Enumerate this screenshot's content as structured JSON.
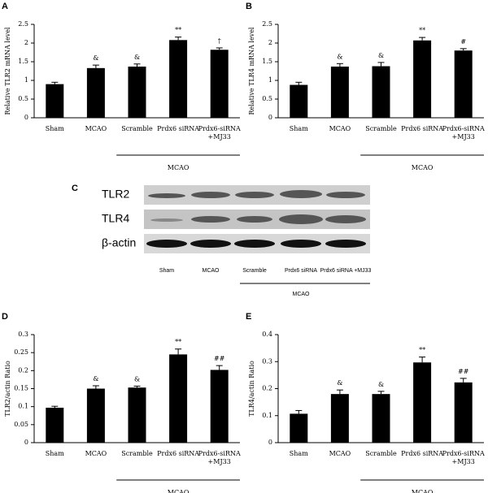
{
  "chart_data": [
    {
      "type": "bar",
      "panel": "A",
      "ylabel": "Relative TLR2 mRNA level",
      "categories": [
        "Sham",
        "MCAO",
        "Scramble",
        "Prdx6 siRNA",
        "Prdx6-siRNA\n+MJ33"
      ],
      "values": [
        0.9,
        1.33,
        1.37,
        2.08,
        1.82
      ],
      "errors": [
        0.05,
        0.08,
        0.07,
        0.08,
        0.05
      ],
      "annotations": [
        null,
        "&",
        "&",
        "**",
        "†"
      ],
      "group_label": "MCAO",
      "ylim": [
        0,
        2.5
      ],
      "yticks": [
        0,
        0.5,
        1,
        1.5,
        2,
        2.5
      ],
      "color": "#000000"
    },
    {
      "type": "bar",
      "panel": "B",
      "ylabel": "Relative TLR4 mRNA level",
      "categories": [
        "Sham",
        "MCAO",
        "Scramble",
        "Prdx6 siRNA",
        "Prdx6-siRNA\n+MJ33"
      ],
      "values": [
        0.88,
        1.37,
        1.38,
        2.07,
        1.8
      ],
      "errors": [
        0.07,
        0.08,
        0.1,
        0.08,
        0.05
      ],
      "annotations": [
        null,
        "&",
        "&",
        "**",
        "#"
      ],
      "group_label": "MCAO",
      "ylim": [
        0,
        2.5
      ],
      "yticks": [
        0,
        0.5,
        1,
        1.5,
        2,
        2.5
      ],
      "color": "#000000"
    },
    {
      "type": "bar",
      "panel": "D",
      "ylabel": "TLR2/actin Ratio",
      "categories": [
        "Sham",
        "MCAO",
        "Scramble",
        "Prdx6 siRNA",
        "Prdx6-siRNA\n+MJ33"
      ],
      "values": [
        0.097,
        0.15,
        0.153,
        0.245,
        0.202
      ],
      "errors": [
        0.004,
        0.008,
        0.004,
        0.015,
        0.012
      ],
      "annotations": [
        null,
        "&",
        "&",
        "**",
        "##"
      ],
      "group_label": "MCAO",
      "ylim": [
        0,
        0.3
      ],
      "yticks": [
        0,
        0.05,
        0.1,
        0.15,
        0.2,
        0.25,
        0.3
      ],
      "color": "#000000"
    },
    {
      "type": "bar",
      "panel": "E",
      "ylabel": "TLR4/actin Ratio",
      "categories": [
        "Sham",
        "MCAO",
        "Scramble",
        "Prdx6 siRNA",
        "Prdx6-siRNA\n+MJ33"
      ],
      "values": [
        0.107,
        0.18,
        0.18,
        0.297,
        0.223
      ],
      "errors": [
        0.012,
        0.015,
        0.01,
        0.02,
        0.015
      ],
      "annotations": [
        null,
        "&",
        "&",
        "**",
        "##"
      ],
      "group_label": "MCAO",
      "ylim": [
        0,
        0.4
      ],
      "yticks": [
        0,
        0.1,
        0.2,
        0.3,
        0.4
      ],
      "color": "#000000"
    }
  ],
  "blot": {
    "panel": "C",
    "rows": [
      "TLR2",
      "TLR4",
      "β-actin"
    ],
    "lanes": [
      "Sham",
      "MCAO",
      "Scramble",
      "Prdx6 siRNA",
      "Prdx6 siRNA +MJ33"
    ],
    "group_label": "MCAO"
  }
}
